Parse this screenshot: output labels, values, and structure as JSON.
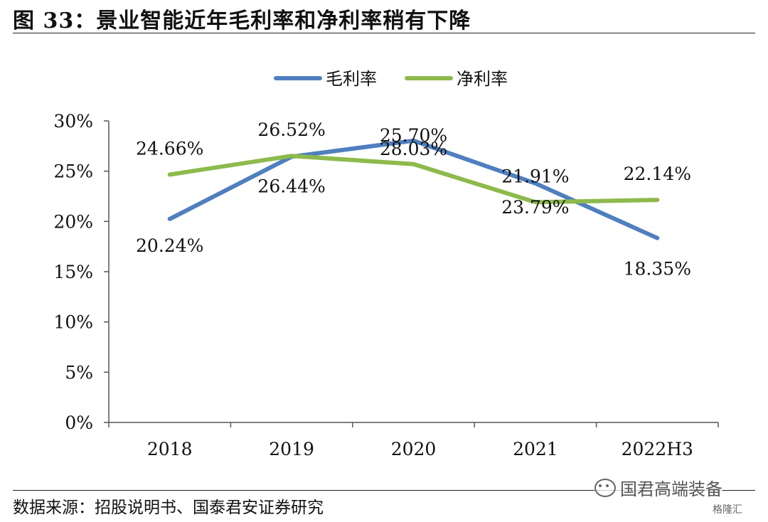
{
  "title": "图 33：景业智能近年毛利率和净利率稍有下降",
  "source": "数据来源：招股说明书、国泰君安证券研究",
  "watermark": {
    "text": "国君高端装备",
    "logo_text": "格隆汇"
  },
  "chart_data": {
    "type": "line",
    "categories": [
      "2018",
      "2019",
      "2020",
      "2021",
      "2022H3"
    ],
    "ylim": [
      0,
      30
    ],
    "yticks": [
      0,
      5,
      10,
      15,
      20,
      25,
      30
    ],
    "ytick_labels": [
      "0%",
      "5%",
      "10%",
      "15%",
      "20%",
      "25%",
      "30%"
    ],
    "grid": false,
    "legend": "top-center",
    "series": [
      {
        "name": "毛利率",
        "color": "#4f7fbf",
        "values": [
          20.24,
          26.44,
          28.03,
          23.79,
          18.35
        ],
        "labels": [
          "20.24%",
          "26.44%",
          "28.03%",
          "23.79%",
          "18.35%"
        ]
      },
      {
        "name": "净利率",
        "color": "#8dba4c",
        "values": [
          24.66,
          26.52,
          25.7,
          21.91,
          22.14
        ],
        "labels": [
          "24.66%",
          "26.52%",
          "25.70%",
          "21.91%",
          "22.14%"
        ]
      }
    ]
  }
}
